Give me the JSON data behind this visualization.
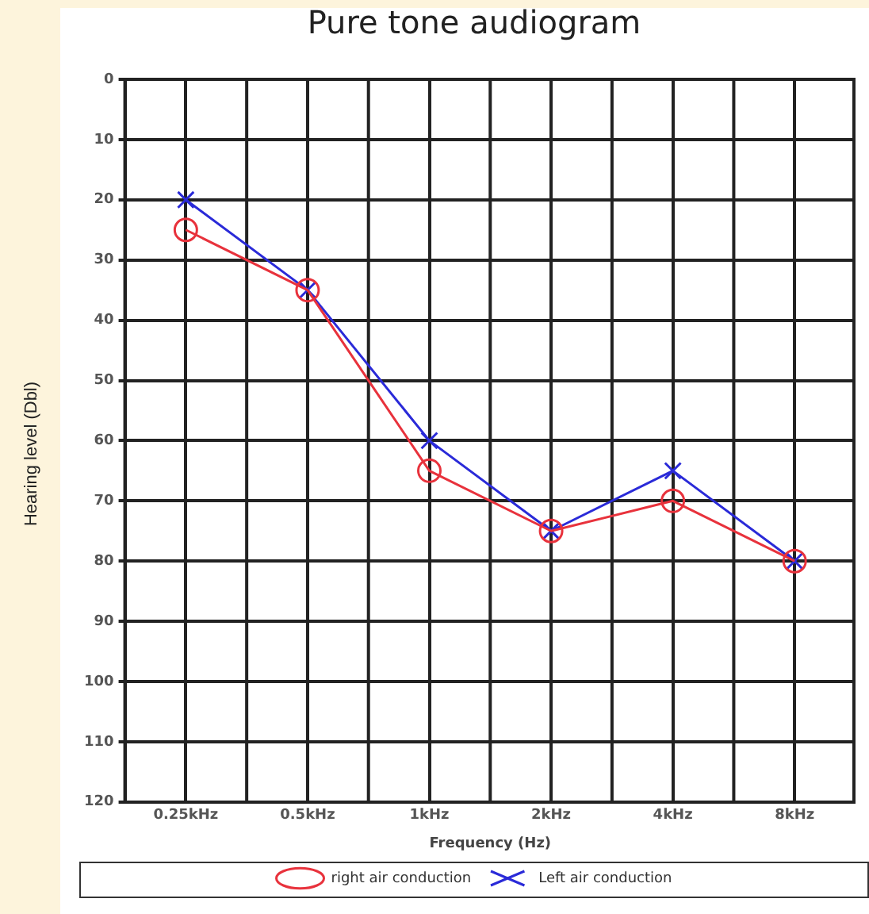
{
  "chart_data": {
    "type": "line",
    "title": "Pure tone audiogram",
    "xlabel": "Frequency (Hz)",
    "ylabel": "Hearing level (Dbl)",
    "categories": [
      "0.25kHz",
      "0.5kHz",
      "1kHz",
      "2kHz",
      "4kHz",
      "8kHz"
    ],
    "series": [
      {
        "name": "right air conduction",
        "color": "#e8323c",
        "marker": "circle",
        "values": [
          25,
          35,
          65,
          75,
          70,
          80
        ]
      },
      {
        "name": "Left air conduction",
        "color": "#2a2ad8",
        "marker": "cross",
        "values": [
          20,
          35,
          60,
          75,
          65,
          80
        ]
      }
    ],
    "ylim": [
      120,
      0
    ],
    "yticks": [
      0,
      10,
      20,
      30,
      40,
      50,
      60,
      70,
      80,
      90,
      100,
      110,
      120
    ],
    "grid": true,
    "legend": "bottom",
    "line_style": "solid"
  }
}
